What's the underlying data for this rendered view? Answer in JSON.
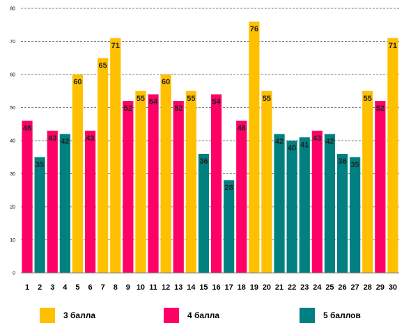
{
  "chart_data": {
    "type": "bar",
    "categories": [
      "1",
      "2",
      "3",
      "4",
      "5",
      "6",
      "7",
      "8",
      "9",
      "10",
      "11",
      "12",
      "13",
      "14",
      "15",
      "16",
      "17",
      "18",
      "19",
      "20",
      "21",
      "22",
      "23",
      "24",
      "25",
      "26",
      "27",
      "28",
      "29",
      "30"
    ],
    "values": [
      46,
      35,
      43,
      42,
      60,
      43,
      65,
      71,
      52,
      55,
      54,
      60,
      52,
      55,
      36,
      54,
      28,
      46,
      76,
      55,
      42,
      40,
      41,
      43,
      42,
      36,
      35,
      55,
      52,
      71
    ],
    "groups": [
      "4 балла",
      "5 баллов",
      "4 балла",
      "5 баллов",
      "3 балла",
      "4 балла",
      "3 балла",
      "3 балла",
      "4 балла",
      "3 балла",
      "4 балла",
      "3 балла",
      "4 балла",
      "3 балла",
      "5 баллов",
      "4 балла",
      "5 баллов",
      "4 балла",
      "3 балла",
      "3 балла",
      "5 баллов",
      "5 баллов",
      "5 баллов",
      "4 балла",
      "5 баллов",
      "5 баллов",
      "5 баллов",
      "3 балла",
      "4 балла",
      "3 балла"
    ],
    "ylim": [
      0,
      80
    ],
    "yticks": [
      0,
      10,
      20,
      30,
      40,
      50,
      60,
      70,
      80
    ],
    "grid": true,
    "legend_placement": "bottom",
    "series": [
      {
        "name": "3 балла",
        "color": "#FFC000"
      },
      {
        "name": "4 балла",
        "color": "#FF0066"
      },
      {
        "name": "5 баллов",
        "color": "#008080"
      }
    ]
  }
}
